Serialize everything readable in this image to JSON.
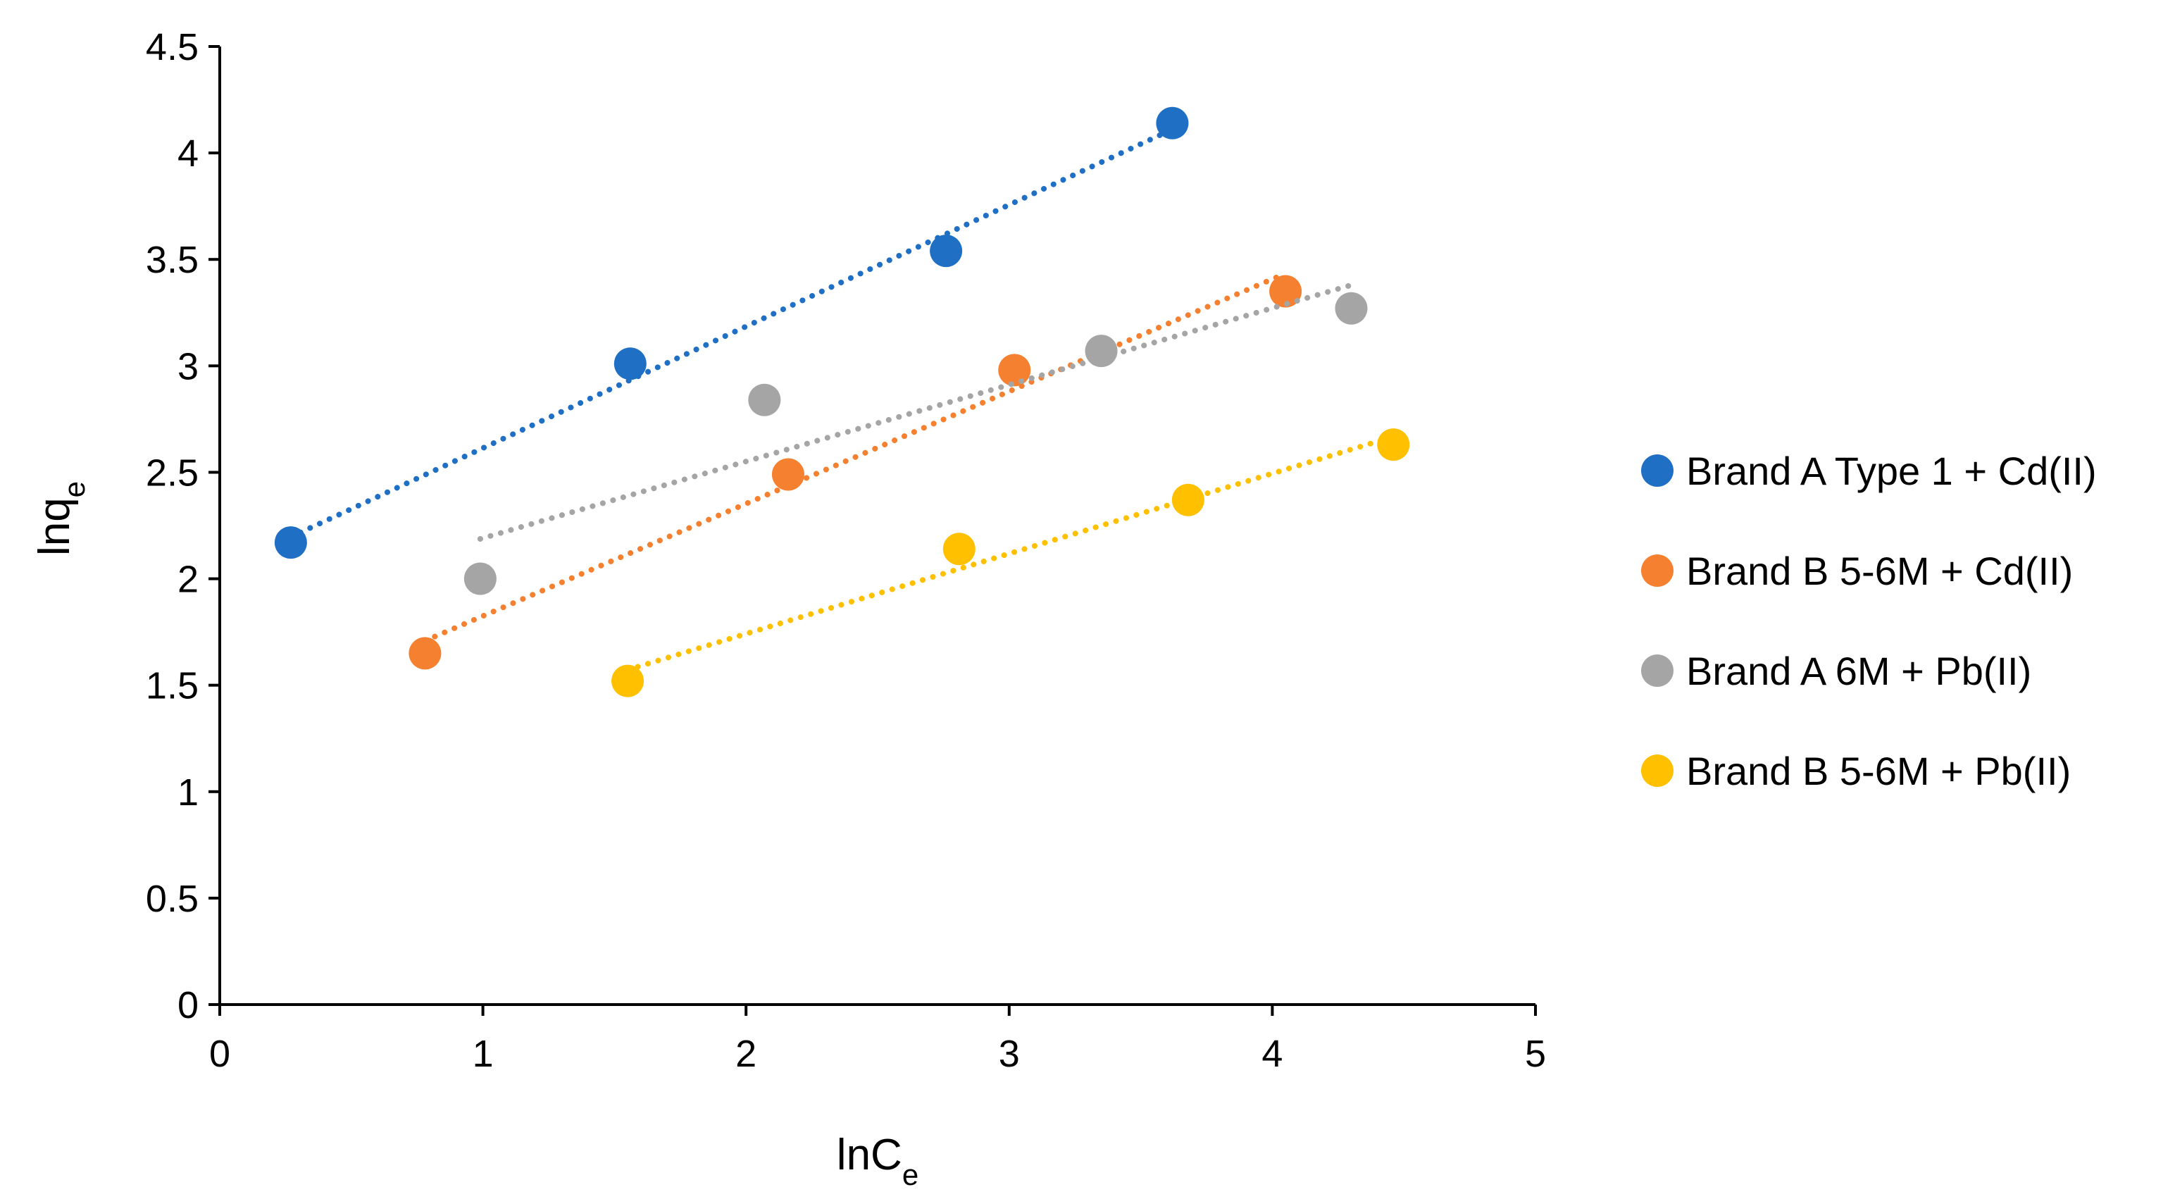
{
  "chart_data": {
    "type": "scatter",
    "title": "",
    "xlabel": {
      "main": "lnC",
      "sub": "e"
    },
    "ylabel": {
      "main": "lnq",
      "sub": "e"
    },
    "xlim": [
      0,
      5
    ],
    "ylim": [
      0,
      4.5
    ],
    "x_ticks": [
      "0",
      "1",
      "2",
      "3",
      "4",
      "5"
    ],
    "y_ticks": [
      "0",
      "0.5",
      "1",
      "1.5",
      "2",
      "2.5",
      "3",
      "3.5",
      "4",
      "4.5"
    ],
    "grid": false,
    "legend_position": "right",
    "series": [
      {
        "name": "Brand A Type 1 + Cd(II)",
        "color": "#1F6FC5",
        "points": [
          [
            0.27,
            2.17
          ],
          [
            1.56,
            3.01
          ],
          [
            2.76,
            3.54
          ],
          [
            3.62,
            4.14
          ]
        ],
        "trendline": {
          "style": "dotted",
          "x": [
            0.27,
            3.62
          ]
        }
      },
      {
        "name": "Brand B 5-6M + Cd(II)",
        "color": "#F5802F",
        "points": [
          [
            0.78,
            1.65
          ],
          [
            2.16,
            2.49
          ],
          [
            3.02,
            2.98
          ],
          [
            4.05,
            3.35
          ]
        ],
        "trendline": {
          "style": "dotted",
          "x": [
            0.78,
            4.05
          ]
        }
      },
      {
        "name": "Brand A 6M + Pb(II)",
        "color": "#A5A5A5",
        "points": [
          [
            0.99,
            2.0
          ],
          [
            2.07,
            2.84
          ],
          [
            3.35,
            3.07
          ],
          [
            4.3,
            3.27
          ]
        ],
        "trendline": {
          "style": "dotted",
          "x": [
            0.99,
            4.3
          ]
        }
      },
      {
        "name": "Brand B 5-6M + Pb(II)",
        "color": "#FFC000",
        "points": [
          [
            1.55,
            1.52
          ],
          [
            2.81,
            2.14
          ],
          [
            3.68,
            2.37
          ],
          [
            4.46,
            2.63
          ]
        ],
        "trendline": {
          "style": "dotted",
          "x": [
            1.55,
            4.46
          ]
        }
      }
    ]
  }
}
